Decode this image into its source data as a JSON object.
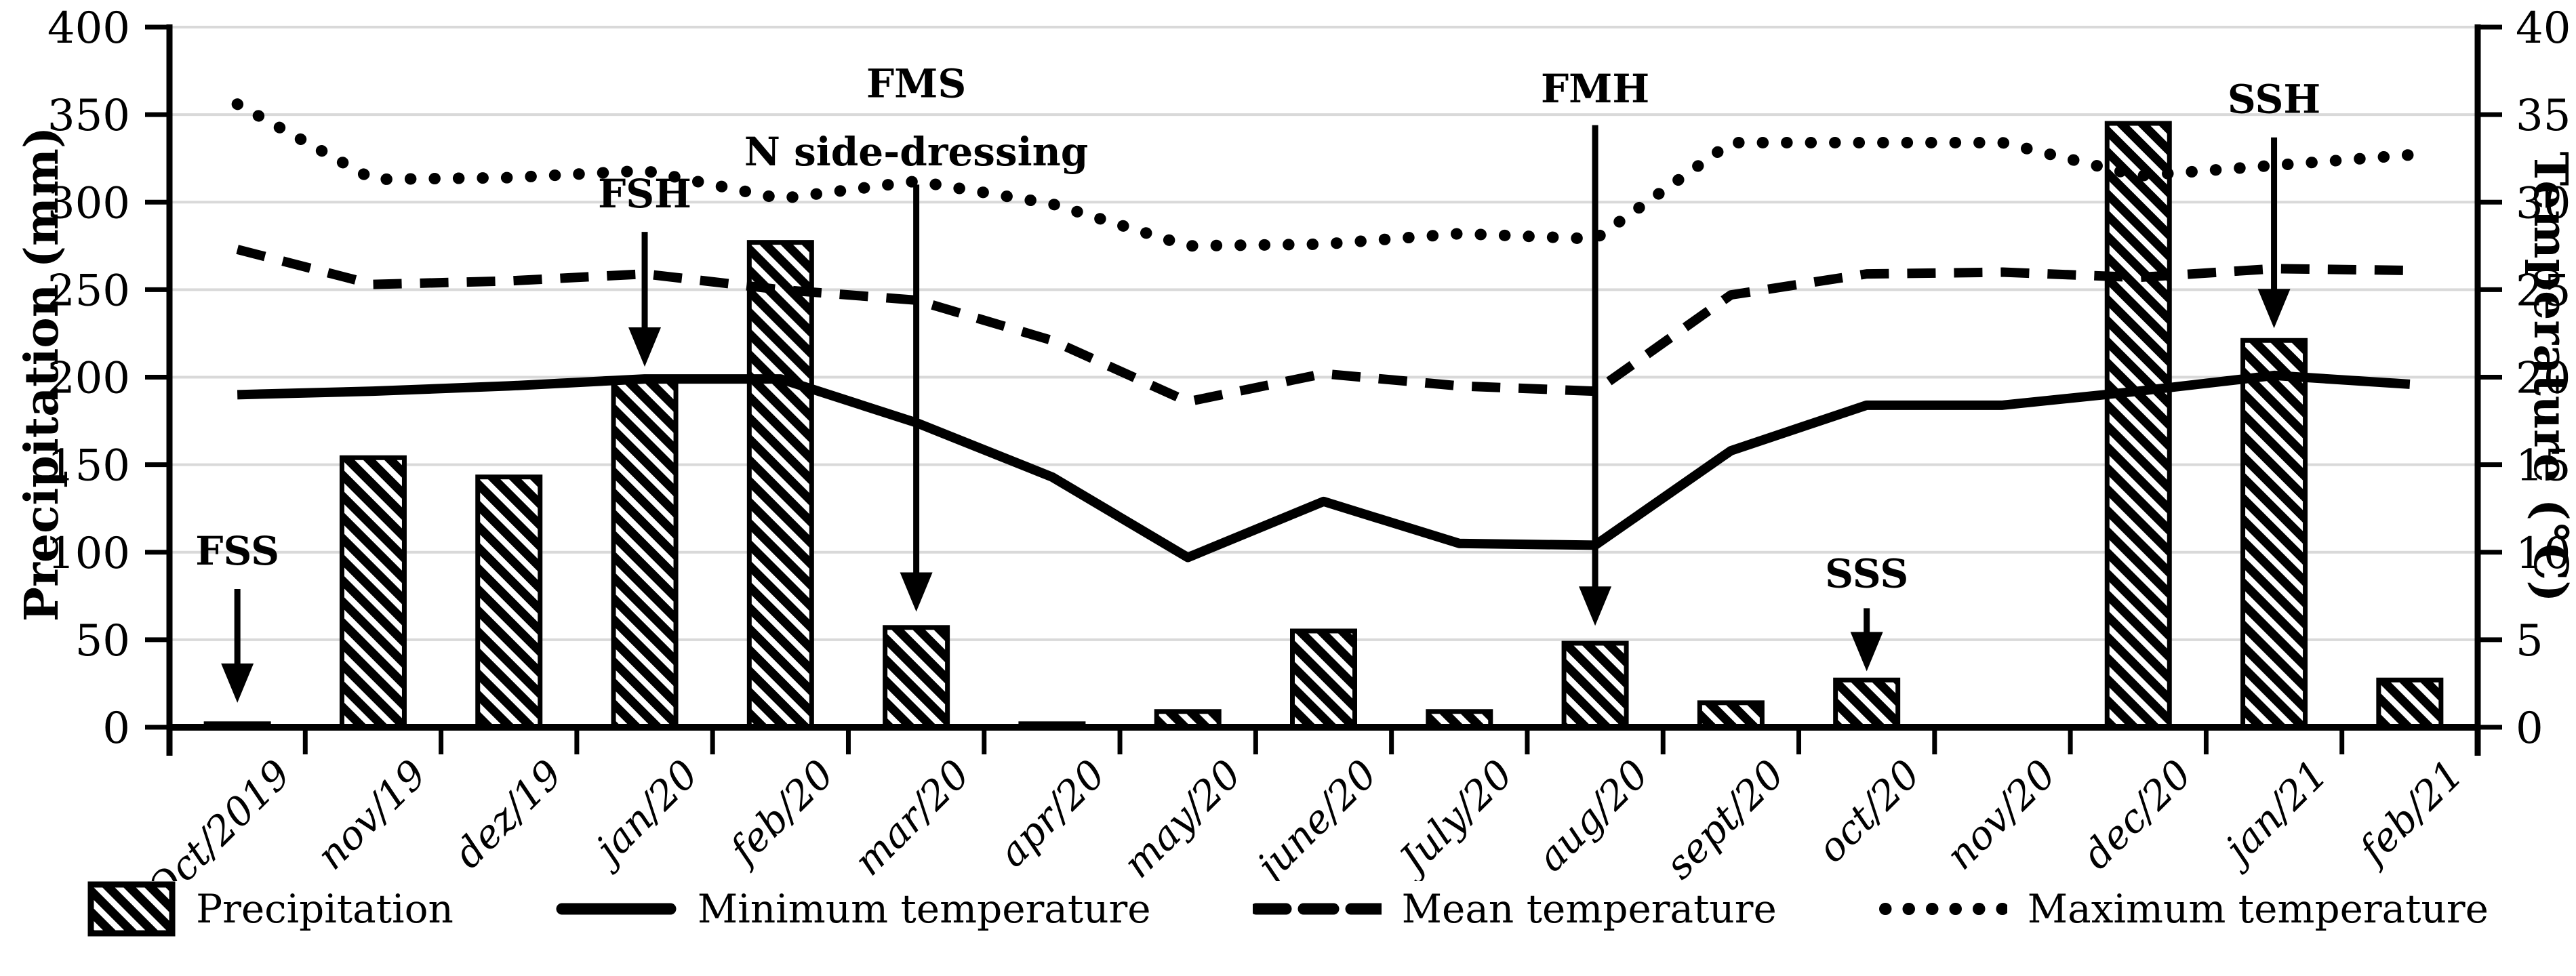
{
  "colors": {
    "ink": "#000000",
    "gridline": "#d9d9d9",
    "background": "#ffffff"
  },
  "legend": {
    "items": [
      {
        "label": "Precipitation",
        "swatch": "hatched-bar"
      },
      {
        "label": "Minimum temperature",
        "swatch": "solid-line"
      },
      {
        "label": "Mean temperature",
        "swatch": "dashed-line"
      },
      {
        "label": "Maximum temperature",
        "swatch": "dotted-line"
      }
    ]
  },
  "chart_data": {
    "type": "bar",
    "subtype": "combo bar + 3 lines, dual y-axes",
    "title": "",
    "grid": "horizontal gridlines every 50 mm / 5 °C",
    "categories": [
      "Oct/2019",
      "nov/19",
      "dez/19",
      "jan/20",
      "feb/20",
      "mar/20",
      "apr/20",
      "may/20",
      "june/20",
      "July/20",
      "aug/20",
      "sept/20",
      "oct/20",
      "nov/20",
      "dec/20",
      "jan/21",
      "feb/21"
    ],
    "series": [
      {
        "name": "Precipitation",
        "type": "bar",
        "axis": "left",
        "unit": "mm",
        "values": [
          2,
          154,
          143,
          199,
          277,
          57,
          2,
          9,
          55,
          9,
          48,
          14,
          27,
          0,
          345,
          221,
          27
        ]
      },
      {
        "name": "Minimum temperature",
        "type": "line",
        "line_style": "solid",
        "axis": "right",
        "unit": "°C",
        "values": [
          19.0,
          19.2,
          19.5,
          19.9,
          19.9,
          17.4,
          14.3,
          9.7,
          12.9,
          10.5,
          10.4,
          15.8,
          18.4,
          18.4,
          19.2,
          20.1,
          19.6
        ]
      },
      {
        "name": "Mean temperature",
        "type": "line",
        "line_style": "dashed",
        "axis": "right",
        "unit": "°C",
        "values": [
          27.3,
          25.3,
          25.5,
          25.9,
          25.0,
          24.4,
          22.1,
          18.6,
          20.2,
          19.5,
          19.2,
          24.7,
          25.9,
          26.0,
          25.7,
          26.2,
          26.1
        ]
      },
      {
        "name": "Maximum temperature",
        "type": "line",
        "line_style": "dotted",
        "axis": "right",
        "unit": "°C",
        "values": [
          35.6,
          31.3,
          31.4,
          31.8,
          30.2,
          31.2,
          29.9,
          27.5,
          27.6,
          28.2,
          27.9,
          33.4,
          33.4,
          33.4,
          31.5,
          32.1,
          32.7
        ]
      }
    ],
    "axes": {
      "left": {
        "title": "Precipitation (mm)",
        "min": 0,
        "max": 400,
        "step": 50,
        "tick_labels": [
          "0",
          "50",
          "100",
          "150",
          "200",
          "250",
          "300",
          "350",
          "400"
        ]
      },
      "right": {
        "title": "Temperature (°C)",
        "min": 0,
        "max": 40,
        "step": 5,
        "tick_labels": [
          "0",
          "5",
          "10",
          "15",
          "20",
          "25",
          "30",
          "35",
          "40"
        ]
      }
    },
    "annotations": [
      {
        "label": "FSS",
        "category": "Oct/2019",
        "label_mm": 93,
        "arrow_from_mm": 79,
        "arrow_to_mm": 14
      },
      {
        "label": "FSH",
        "category": "jan/20",
        "label_mm": 297,
        "arrow_from_mm": 283,
        "arrow_to_mm": 206
      },
      {
        "label": "FMS",
        "label2": "N side-dressing",
        "category": "mar/20",
        "label_mm": 360,
        "label2_mm": 321,
        "arrow_from_mm": 310,
        "arrow_to_mm": 66
      },
      {
        "label": "FMH",
        "category": "aug/20",
        "label_mm": 357,
        "arrow_from_mm": 344,
        "arrow_to_mm": 58
      },
      {
        "label": "SSS",
        "category": "oct/20",
        "label_mm": 80,
        "arrow_from_mm": 68,
        "arrow_to_mm": 32
      },
      {
        "label": "SSH",
        "category": "jan/21",
        "label_mm": 351,
        "arrow_from_mm": 337,
        "arrow_to_mm": 228
      }
    ]
  }
}
